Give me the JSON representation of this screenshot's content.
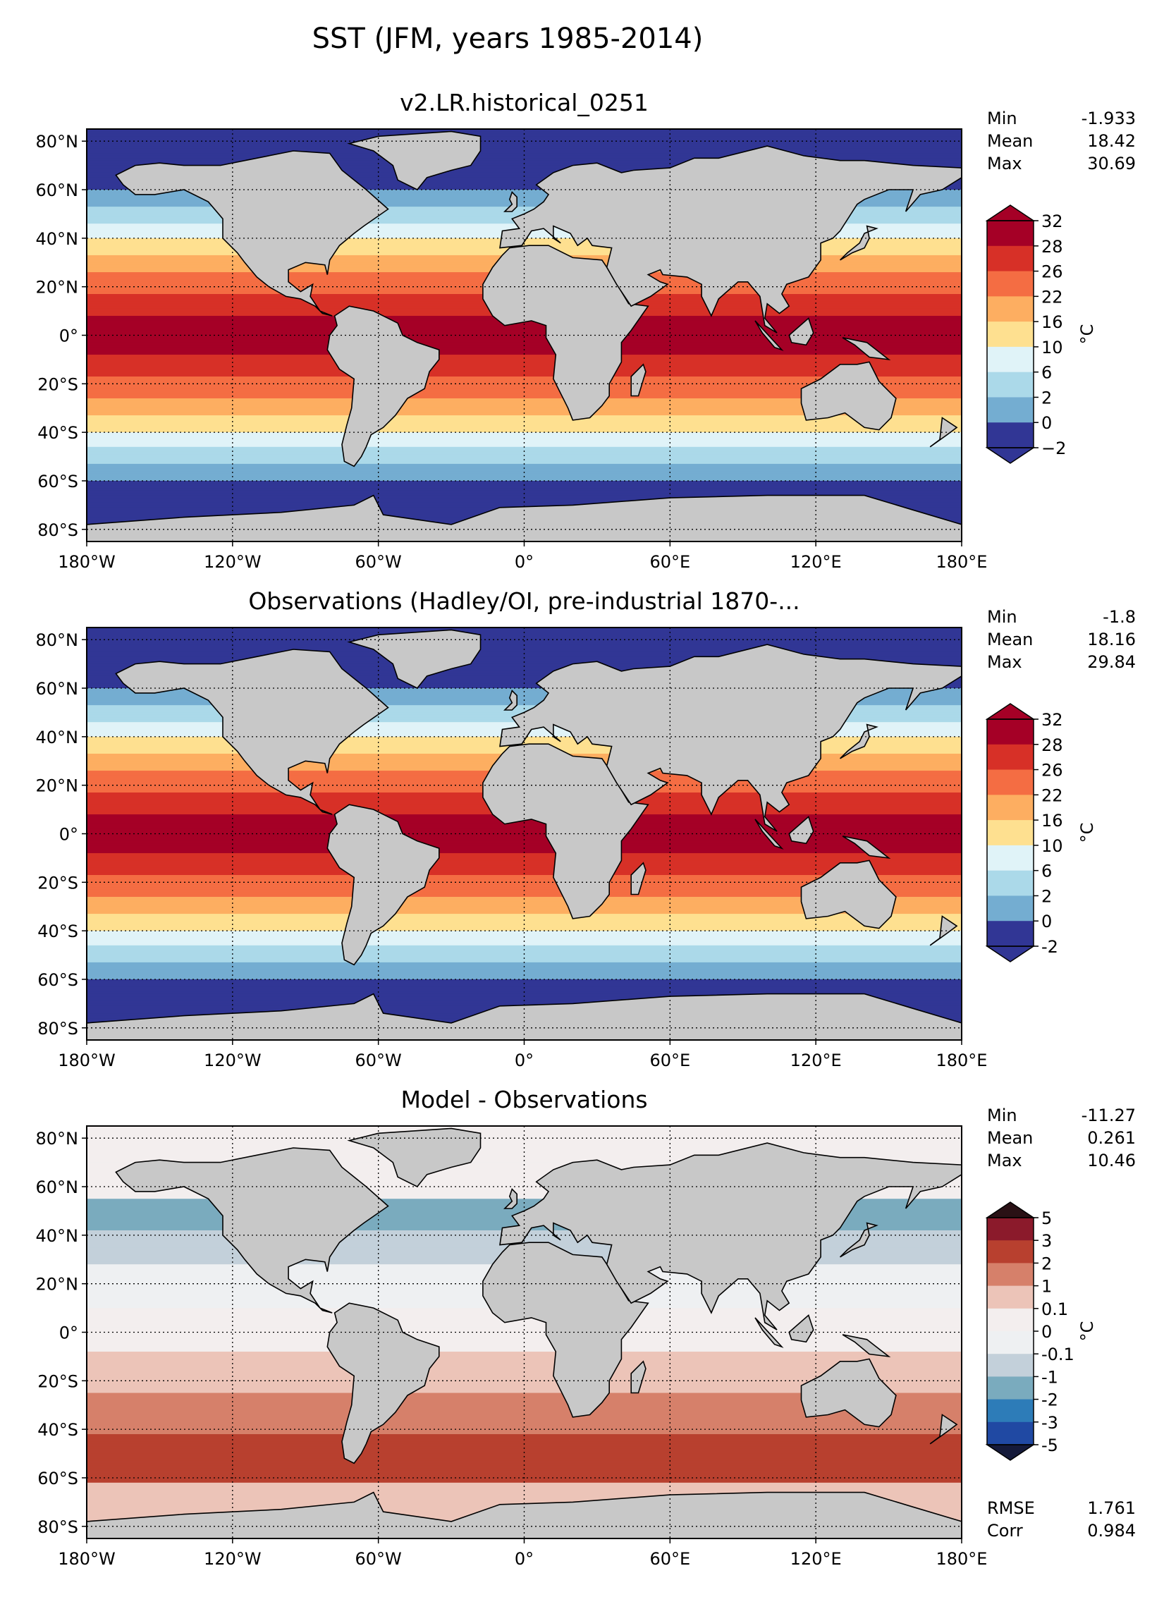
{
  "figure": {
    "title": "SST (JFM, years 1985-2014)"
  },
  "chart_data": [
    {
      "type": "heatmap",
      "title": "v2.LR.historical_0251",
      "xlabel": "",
      "ylabel": "",
      "x_ticks": [
        "180°W",
        "120°W",
        "60°W",
        "0°",
        "60°E",
        "120°E",
        "180°E"
      ],
      "y_ticks": [
        "80°N",
        "60°N",
        "40°N",
        "20°N",
        "0°",
        "20°S",
        "40°S",
        "60°S",
        "80°S"
      ],
      "xlim": [
        -180,
        180
      ],
      "ylim": [
        -85,
        85
      ],
      "grid": true,
      "stats": [
        {
          "label": "Min",
          "value": "-1.933"
        },
        {
          "label": "Mean",
          "value": "18.42"
        },
        {
          "label": "Max",
          "value": "30.69"
        }
      ],
      "colorbar": {
        "unit": "°C",
        "levels": [
          "32",
          "28",
          "26",
          "22",
          "16",
          "10",
          "6",
          "2",
          "0",
          "−2"
        ],
        "colors": [
          "#a50026",
          "#d73027",
          "#f46d43",
          "#fdae61",
          "#fee090",
          "#e0f3f8",
          "#abd9e9",
          "#74add1",
          "#313695"
        ],
        "extend_top": "#a50026",
        "extend_bottom": "#313695"
      }
    },
    {
      "type": "heatmap",
      "title": "Observations (Hadley/OI, pre-industrial 1870-...",
      "xlabel": "",
      "ylabel": "",
      "x_ticks": [
        "180°W",
        "120°W",
        "60°W",
        "0°",
        "60°E",
        "120°E",
        "180°E"
      ],
      "y_ticks": [
        "80°N",
        "60°N",
        "40°N",
        "20°N",
        "0°",
        "20°S",
        "40°S",
        "60°S",
        "80°S"
      ],
      "xlim": [
        -180,
        180
      ],
      "ylim": [
        -85,
        85
      ],
      "grid": true,
      "stats": [
        {
          "label": "Min",
          "value": "-1.8"
        },
        {
          "label": "Mean",
          "value": "18.16"
        },
        {
          "label": "Max",
          "value": "29.84"
        }
      ],
      "colorbar": {
        "unit": "°C",
        "levels": [
          "32",
          "28",
          "26",
          "22",
          "16",
          "10",
          "6",
          "2",
          "0",
          "-2"
        ],
        "colors": [
          "#a50026",
          "#d73027",
          "#f46d43",
          "#fdae61",
          "#fee090",
          "#e0f3f8",
          "#abd9e9",
          "#74add1",
          "#313695"
        ],
        "extend_top": "#a50026",
        "extend_bottom": "#313695"
      }
    },
    {
      "type": "heatmap",
      "title": "Model - Observations",
      "xlabel": "",
      "ylabel": "",
      "x_ticks": [
        "180°W",
        "120°W",
        "60°W",
        "0°",
        "60°E",
        "120°E",
        "180°E"
      ],
      "y_ticks": [
        "80°N",
        "60°N",
        "40°N",
        "20°N",
        "0°",
        "20°S",
        "40°S",
        "60°S",
        "80°S"
      ],
      "xlim": [
        -180,
        180
      ],
      "ylim": [
        -85,
        85
      ],
      "grid": true,
      "stats": [
        {
          "label": "Min",
          "value": "-11.27"
        },
        {
          "label": "Mean",
          "value": "0.261"
        },
        {
          "label": "Max",
          "value": "10.46"
        }
      ],
      "extra_stats": [
        {
          "label": "RMSE",
          "value": "1.761"
        },
        {
          "label": "Corr",
          "value": "0.984"
        }
      ],
      "colorbar": {
        "unit": "°C",
        "levels": [
          "5",
          "3",
          "2",
          "1",
          "0.1",
          "0",
          "-0.1",
          "-1",
          "-2",
          "-3",
          "-5"
        ],
        "colors": [
          "#8b1a2b",
          "#b8402f",
          "#d6806a",
          "#ecc4b8",
          "#f3eeee",
          "#eef0f2",
          "#c3d0da",
          "#7aabbe",
          "#2d7cb8",
          "#2049a3"
        ],
        "extend_top": "#2a1115",
        "extend_bottom": "#151a3a"
      }
    }
  ],
  "style": {
    "land_color": "#c8c8c8",
    "coast_color": "#000000"
  }
}
